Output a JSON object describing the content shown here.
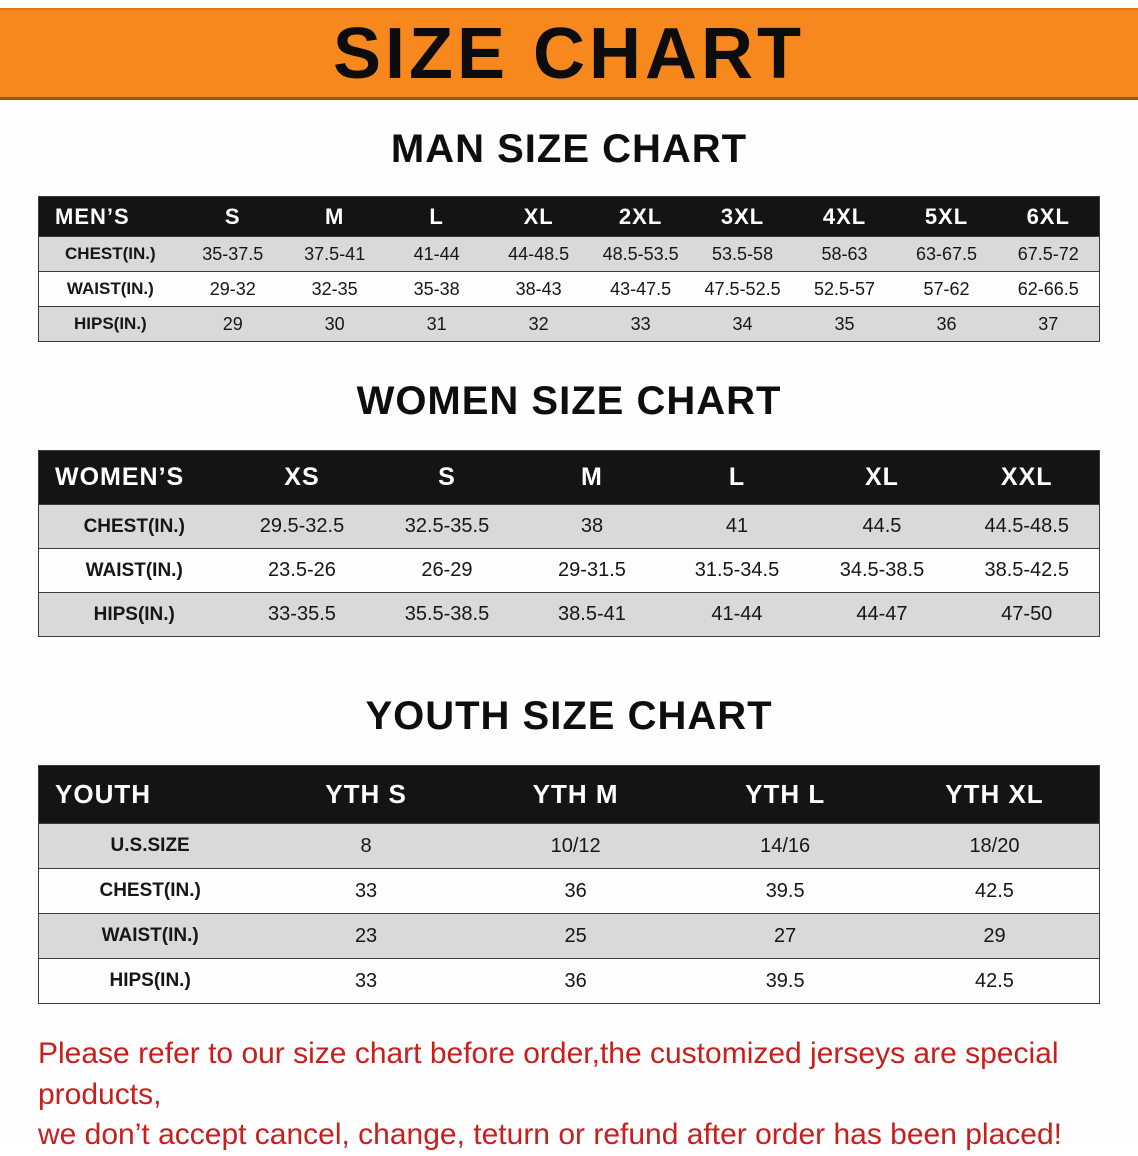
{
  "banner": {
    "title": "SIZE CHART",
    "bg_color": "#f6881d",
    "text_color": "#0c0c0c"
  },
  "colors": {
    "table_header_bg": "#141414",
    "table_row_gray": "#d9d9d9",
    "notice_red": "#c81e1c"
  },
  "sections": [
    {
      "heading": "MAN SIZE CHART",
      "table": {
        "header": [
          "MEN’S",
          "S",
          "M",
          "L",
          "XL",
          "2XL",
          "3XL",
          "4XL",
          "5XL",
          "6XL"
        ],
        "rows": [
          [
            "CHEST(IN.)",
            "35-37.5",
            "37.5-41",
            "41-44",
            "44-48.5",
            "48.5-53.5",
            "53.5-58",
            "58-63",
            "63-67.5",
            "67.5-72"
          ],
          [
            "WAIST(IN.)",
            "29-32",
            "32-35",
            "35-38",
            "38-43",
            "43-47.5",
            "47.5-52.5",
            "52.5-57",
            "57-62",
            "62-66.5"
          ],
          [
            "HIPS(IN.)",
            "29",
            "30",
            "31",
            "32",
            "33",
            "34",
            "35",
            "36",
            "37"
          ]
        ]
      }
    },
    {
      "heading": "WOMEN SIZE CHART",
      "table": {
        "header": [
          "WOMEN’S",
          "XS",
          "S",
          "M",
          "L",
          "XL",
          "XXL"
        ],
        "rows": [
          [
            "CHEST(IN.)",
            "29.5-32.5",
            "32.5-35.5",
            "38",
            "41",
            "44.5",
            "44.5-48.5"
          ],
          [
            "WAIST(IN.)",
            "23.5-26",
            "26-29",
            "29-31.5",
            "31.5-34.5",
            "34.5-38.5",
            "38.5-42.5"
          ],
          [
            "HIPS(IN.)",
            "33-35.5",
            "35.5-38.5",
            "38.5-41",
            "41-44",
            "44-47",
            "47-50"
          ]
        ]
      }
    },
    {
      "heading": "YOUTH SIZE CHART",
      "table": {
        "header": [
          "YOUTH",
          "YTH S",
          "YTH M",
          "YTH L",
          "YTH XL"
        ],
        "rows": [
          [
            "U.S.SIZE",
            "8",
            "10/12",
            "14/16",
            "18/20"
          ],
          [
            "CHEST(IN.)",
            "33",
            "36",
            "39.5",
            "42.5"
          ],
          [
            "WAIST(IN.)",
            "23",
            "25",
            "27",
            "29"
          ],
          [
            "HIPS(IN.)",
            "33",
            "36",
            "39.5",
            "42.5"
          ]
        ]
      }
    }
  ],
  "footer": {
    "line1": "Please refer to our size chart before order,the customized jerseys are special products,",
    "line2": "we don’t accept cancel, change, teturn or refund after order has been placed!"
  }
}
